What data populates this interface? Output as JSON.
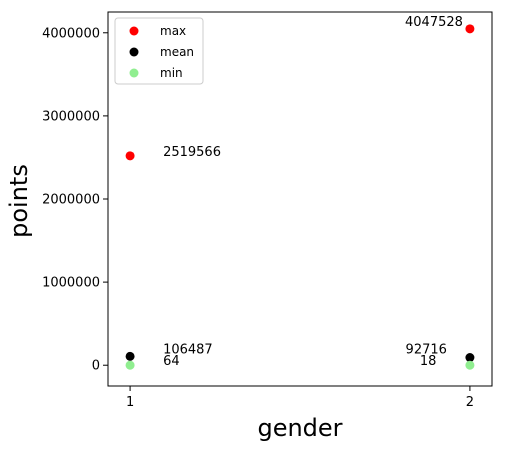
{
  "chart_data": {
    "type": "scatter",
    "xlabel": "gender",
    "ylabel": "points",
    "x": [
      1,
      2
    ],
    "xticks": [
      "1",
      "2"
    ],
    "xlim": [
      0.935,
      2.065
    ],
    "ylim": [
      -250000,
      4250000
    ],
    "yticks": [
      0,
      1000000,
      2000000,
      3000000,
      4000000
    ],
    "ytick_labels": [
      "0",
      "1000000",
      "2000000",
      "3000000",
      "4000000"
    ],
    "grid": false,
    "legend_position": "top-left",
    "series": [
      {
        "name": "max",
        "color": "#ff0000",
        "values": [
          2519566,
          4047528
        ],
        "labels": [
          "2519566",
          "4047528"
        ]
      },
      {
        "name": "mean",
        "color": "#000000",
        "values": [
          106487,
          92716
        ],
        "labels": [
          "106487",
          "92716"
        ]
      },
      {
        "name": "min",
        "color": "#90ee90",
        "values": [
          64,
          18
        ],
        "labels": [
          "64",
          "18"
        ]
      }
    ]
  }
}
